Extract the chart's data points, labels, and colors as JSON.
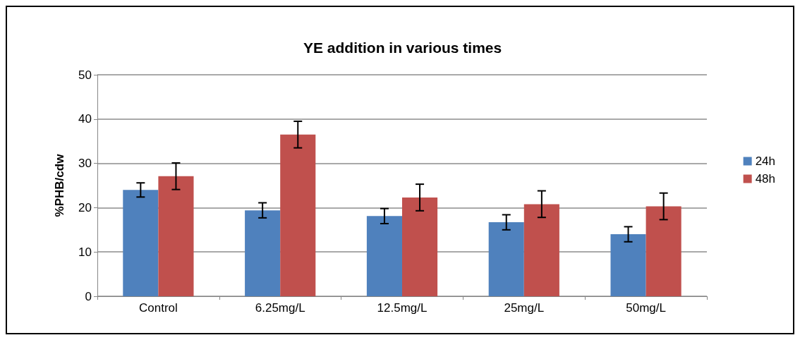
{
  "chart_data": {
    "type": "bar",
    "title": "YE addition in various times",
    "ylabel": "%PHB/cdw",
    "categories": [
      "Control",
      "6.25mg/L",
      "12.5mg/L",
      "25mg/L",
      "50mg/L"
    ],
    "series": [
      {
        "name": "24h",
        "color": "#4f81bd",
        "values": [
          24.0,
          19.4,
          18.1,
          16.7,
          14.0
        ],
        "errors": [
          1.6,
          1.7,
          1.7,
          1.7,
          1.7
        ]
      },
      {
        "name": "48h",
        "color": "#c0504d",
        "values": [
          27.1,
          36.5,
          22.3,
          20.8,
          20.3
        ],
        "errors": [
          3.0,
          3.0,
          3.0,
          3.0,
          3.0
        ]
      }
    ],
    "ylim": [
      0,
      50
    ],
    "yticks": [
      0,
      10,
      20,
      30,
      40,
      50
    ],
    "grid": "y",
    "legend": "right"
  }
}
